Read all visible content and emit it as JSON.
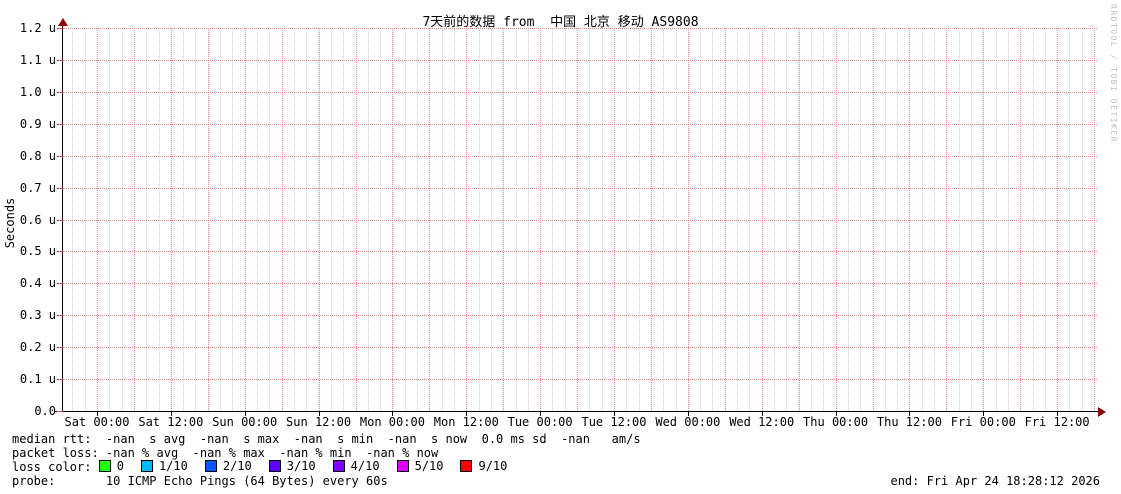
{
  "title": "7天前的数据 from  中国 北京 移动 AS9808",
  "watermark": "RRDTOOL / TOBI OETIKER",
  "chart_data": {
    "type": "line",
    "title": "7天前的数据 from  中国 北京 移动 AS9808",
    "xlabel": "",
    "ylabel": "Seconds",
    "ylim": [
      0,
      1.2e-06
    ],
    "y_unit": "u",
    "y_ticks": [
      "1.2 u",
      "1.1 u",
      "1.0 u",
      "0.9 u",
      "0.8 u",
      "0.7 u",
      "0.6 u",
      "0.5 u",
      "0.4 u",
      "0.3 u",
      "0.2 u",
      "0.1 u",
      "0.0"
    ],
    "x_ticks": [
      "Sat 00:00",
      "Sat 12:00",
      "Sun 00:00",
      "Sun 12:00",
      "Mon 00:00",
      "Mon 12:00",
      "Tue 00:00",
      "Tue 12:00",
      "Wed 00:00",
      "Wed 12:00",
      "Thu 00:00",
      "Thu 12:00",
      "Fri 00:00",
      "Fri 12:00"
    ],
    "series": [],
    "grid": true,
    "legend_position": "bottom",
    "colors": {
      "grid_minor": "#cccccc",
      "grid_major": "#f08080",
      "axis": "#000000",
      "axis_arrow": "#8b0000"
    }
  },
  "legend": {
    "median_rtt": "median rtt:  -nan  s avg  -nan  s max  -nan  s min  -nan  s now  0.0 ms sd  -nan   am/s",
    "packet_loss": "packet loss: -nan % avg  -nan % max  -nan % min  -nan % now",
    "loss_color_label": "loss color: ",
    "loss_colors": [
      {
        "label": "0",
        "color": "#26ff00"
      },
      {
        "label": "1/10",
        "color": "#00b8ff"
      },
      {
        "label": "2/10",
        "color": "#0059ff"
      },
      {
        "label": "3/10",
        "color": "#5e00ff"
      },
      {
        "label": "4/10",
        "color": "#7e00ff"
      },
      {
        "label": "5/10",
        "color": "#dd00ff"
      },
      {
        "label": "9/10",
        "color": "#ff0000"
      }
    ],
    "probe": "probe:       10 ICMP Echo Pings (64 Bytes) every 60s",
    "end": "end: Fri Apr 24 18:28:12 2026"
  }
}
